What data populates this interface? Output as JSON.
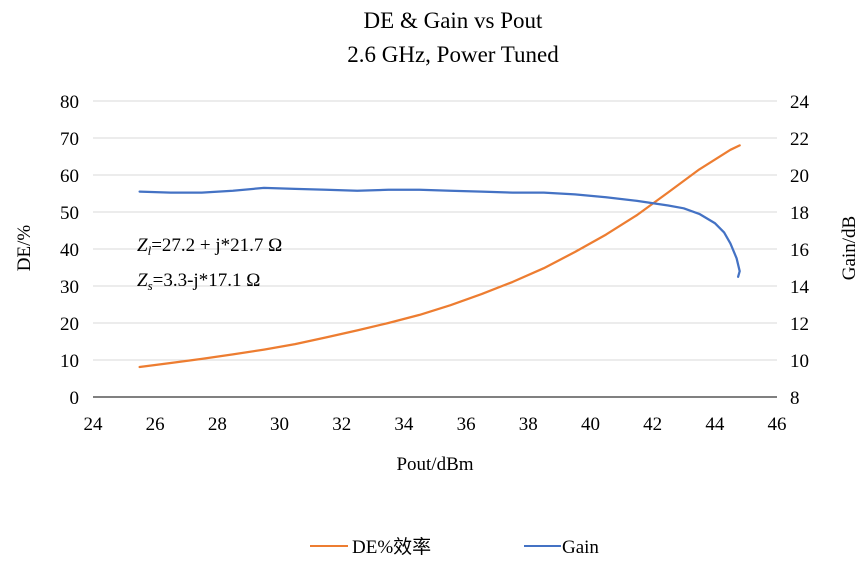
{
  "chart_data": {
    "type": "line",
    "title": "DE & Gain vs Pout",
    "subtitle": "2.6 GHz, Power Tuned",
    "xlabel": "Pout/dBm",
    "ylabel_left": "DE/%",
    "ylabel_right": "Gain/dB",
    "xlim": [
      24,
      46
    ],
    "xticks": [
      24,
      26,
      28,
      30,
      32,
      34,
      36,
      38,
      40,
      42,
      44,
      46
    ],
    "ylim_left": [
      0,
      80
    ],
    "yticks_left": [
      0,
      10,
      20,
      30,
      40,
      50,
      60,
      70,
      80
    ],
    "ylim_right": [
      8,
      24
    ],
    "yticks_right": [
      8,
      10,
      12,
      14,
      16,
      18,
      20,
      22,
      24
    ],
    "grid": "horizontal",
    "legend_position": "bottom",
    "annotations": {
      "zl_sym": "Z",
      "zl_sub": "l",
      "zl_val": "=27.2 + j*21.7 Ω",
      "zs_sym": "Z",
      "zs_sub": "s",
      "zs_val": "=3.3-j*17.1 Ω"
    },
    "series": [
      {
        "name": "DE%效率",
        "axis": "left",
        "color": "#ED7D31",
        "x": [
          25.5,
          26.5,
          27.5,
          28.5,
          29.5,
          30.5,
          31.5,
          32.5,
          33.5,
          34.5,
          35.5,
          36.5,
          37.5,
          38.5,
          39.5,
          40.5,
          41.5,
          42.5,
          43.5,
          44.5,
          44.8
        ],
        "y": [
          8.1,
          9.2,
          10.3,
          11.5,
          12.8,
          14.3,
          16.1,
          18.0,
          20.0,
          22.2,
          24.8,
          27.8,
          31.1,
          34.8,
          39.2,
          43.9,
          49.2,
          55.3,
          61.5,
          66.8,
          68.0
        ]
      },
      {
        "name": "Gain",
        "axis": "right",
        "color": "#4472C4",
        "x": [
          25.5,
          26.5,
          27.5,
          28.5,
          29.5,
          30.5,
          31.5,
          32.5,
          33.5,
          34.5,
          35.5,
          36.5,
          37.5,
          38.5,
          39.5,
          40.5,
          41.5,
          42.5,
          43.0,
          43.5,
          44.0,
          44.3,
          44.5,
          44.7,
          44.8,
          44.75
        ],
        "y": [
          19.1,
          19.05,
          19.05,
          19.15,
          19.3,
          19.25,
          19.2,
          19.15,
          19.2,
          19.2,
          19.15,
          19.1,
          19.05,
          19.05,
          18.95,
          18.8,
          18.6,
          18.35,
          18.2,
          17.9,
          17.4,
          16.9,
          16.3,
          15.5,
          14.8,
          14.5
        ]
      }
    ]
  }
}
